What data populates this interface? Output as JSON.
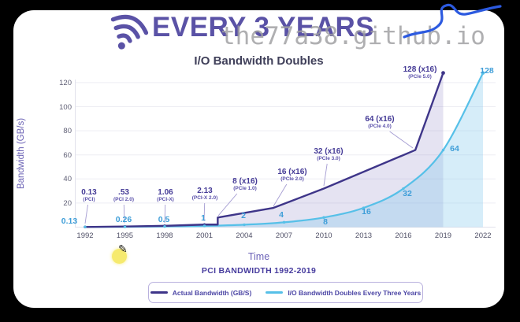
{
  "watermark_text": "the77a38.github.io",
  "header": {
    "title": "EVERY 3 YEARS"
  },
  "chart_data": {
    "type": "line",
    "title": "I/O Bandwidth Doubles",
    "xlabel": "Time",
    "ylabel": "Bandwidth (GB/s)",
    "caption": "PCI BANDWIDTH 1992-2019",
    "x_ticks": [
      "1992",
      "1995",
      "1998",
      "2001",
      "2004",
      "2007",
      "2010",
      "2013",
      "2016",
      "2019",
      "2022"
    ],
    "y_ticks": [
      20,
      40,
      60,
      80,
      100,
      120
    ],
    "xlim": [
      1992,
      2022
    ],
    "ylim": [
      0,
      131
    ],
    "grid": "horizontal",
    "legend_position": "bottom",
    "series": [
      {
        "name": "Actual Bandwidth (GB/S)",
        "color": "#3e3589",
        "fill": "rgba(99,91,175,0.17)",
        "points": [
          [
            1992,
            0.13
          ],
          [
            1995,
            0.53
          ],
          [
            1998,
            1.06
          ],
          [
            2001,
            2.13
          ],
          [
            2002,
            2.13
          ],
          [
            2002,
            8
          ],
          [
            2006.2,
            16
          ],
          [
            2010,
            32
          ],
          [
            2016.9,
            64
          ],
          [
            2019,
            128
          ]
        ],
        "annotations": [
          {
            "value": "0.13",
            "spec": "(PCI)"
          },
          {
            "value": ".53",
            "spec": "(PCI 2.0)"
          },
          {
            "value": "1.06",
            "spec": "(PCI-X)"
          },
          {
            "value": "2.13",
            "spec": "(PCI-X 2.0)"
          },
          {
            "value": "8 (x16)",
            "spec": "(PCIe 1.0)"
          },
          {
            "value": "16 (x16)",
            "spec": "(PCIe 2.0)"
          },
          {
            "value": "32 (x16)",
            "spec": "(PCIe 3.0)"
          },
          {
            "value": "64 (x16)",
            "spec": "(PCIe 4.0)"
          },
          {
            "value": "128 (x16)",
            "spec": "(PCIe 5.0)"
          }
        ]
      },
      {
        "name": "I/O Bandwidth Doubles Every Three Years",
        "color": "#56c0e8",
        "fill": "rgba(126,199,235,0.32)",
        "points": [
          [
            1992,
            0.13
          ],
          [
            1995,
            0.26
          ],
          [
            1998,
            0.5
          ],
          [
            2001,
            1
          ],
          [
            2004,
            2
          ],
          [
            2007,
            4
          ],
          [
            2010,
            8
          ],
          [
            2013,
            16
          ],
          [
            2016,
            32
          ],
          [
            2019,
            64
          ],
          [
            2022,
            128
          ]
        ],
        "value_labels": [
          "0.13",
          "0.26",
          "0.5",
          "1",
          "2",
          "4",
          "8",
          "16",
          "32",
          "64",
          "128"
        ]
      }
    ]
  },
  "cursor": {
    "tool": "pencil-highlight"
  }
}
